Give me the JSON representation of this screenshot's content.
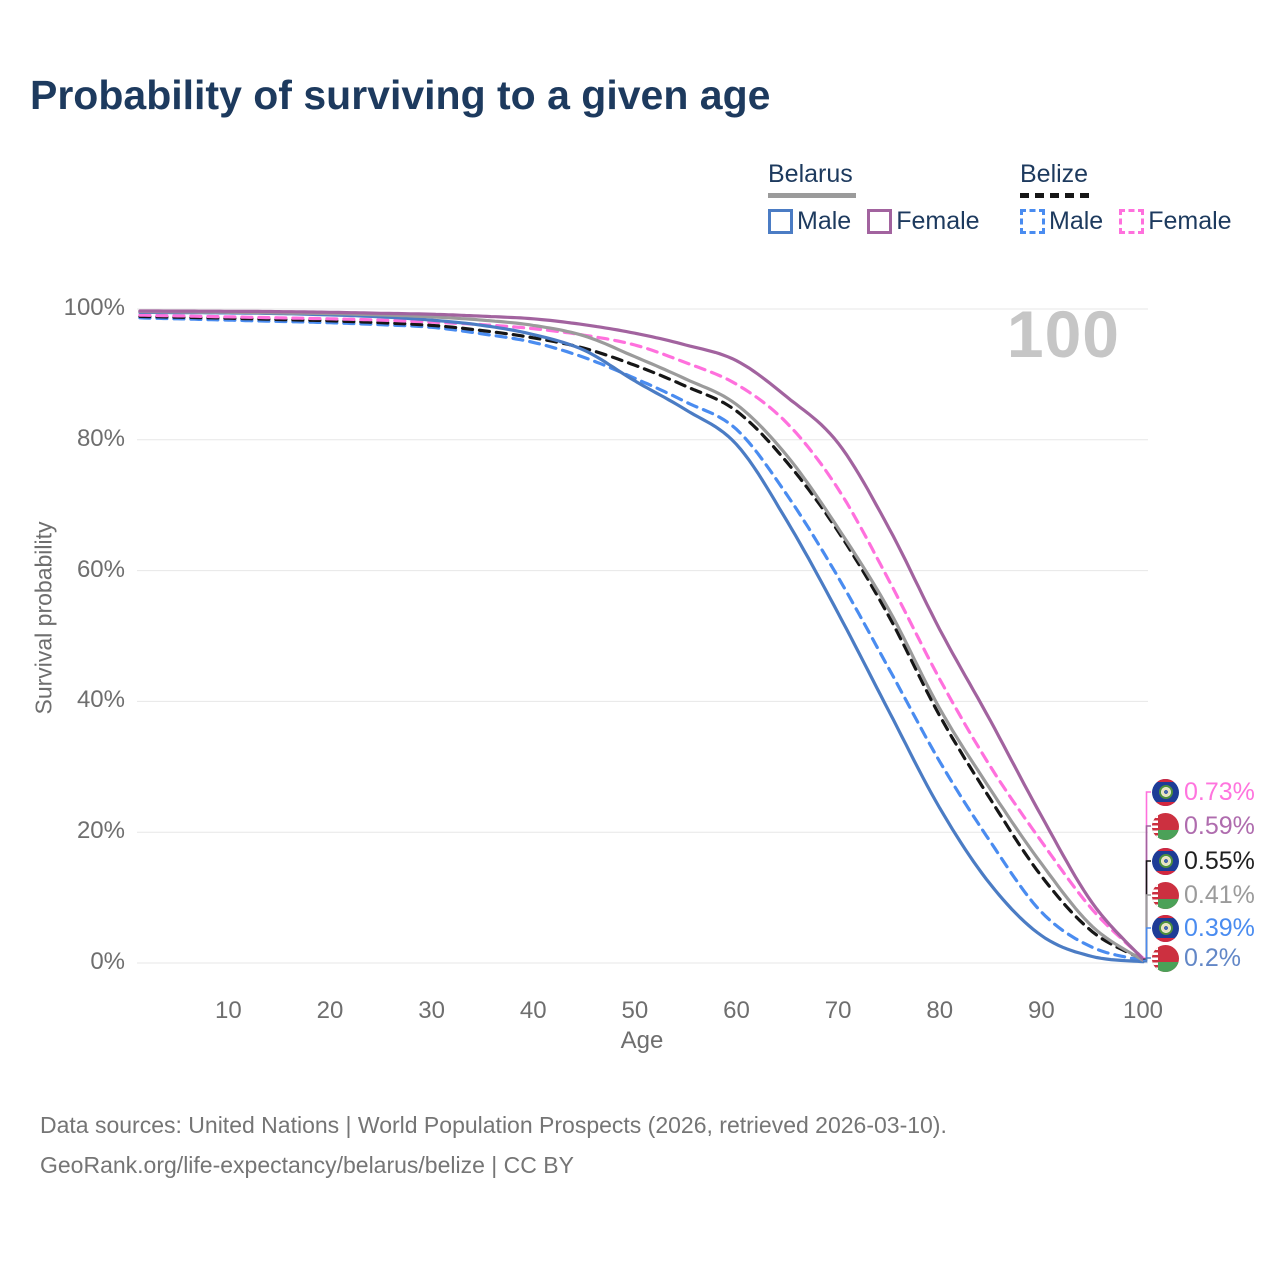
{
  "title": "Probability of surviving to a given age",
  "watermark": "100",
  "legend": {
    "groups": [
      {
        "name": "Belarus",
        "series_key": "belarus_all",
        "items": [
          {
            "label": "Male",
            "series_key": "belarus_male"
          },
          {
            "label": "Female",
            "series_key": "belarus_female"
          }
        ]
      },
      {
        "name": "Belize",
        "series_key": "belize_all",
        "items": [
          {
            "label": "Male",
            "series_key": "belize_male"
          },
          {
            "label": "Female",
            "series_key": "belize_female"
          }
        ]
      }
    ]
  },
  "axes": {
    "y": {
      "label": "Survival probability",
      "ticks": [
        "100%",
        "80%",
        "60%",
        "40%",
        "20%",
        "0%"
      ],
      "tick_values": [
        100,
        80,
        60,
        40,
        20,
        0
      ]
    },
    "x": {
      "label": "Age",
      "ticks": [
        "10",
        "20",
        "30",
        "40",
        "50",
        "60",
        "70",
        "80",
        "90",
        "100"
      ],
      "tick_values": [
        10,
        20,
        30,
        40,
        50,
        60,
        70,
        80,
        90,
        100
      ]
    }
  },
  "right_labels": [
    {
      "value": "0.73%",
      "color": "#ff74de",
      "flag": "belize",
      "series_key": "belize_female"
    },
    {
      "value": "0.59%",
      "color": "#af6cae",
      "flag": "belarus",
      "series_key": "belarus_female"
    },
    {
      "value": "0.55%",
      "color": "#1f1f1f",
      "flag": "belize",
      "series_key": "belize_all"
    },
    {
      "value": "0.41%",
      "color": "#9b9b9b",
      "flag": "belarus",
      "series_key": "belarus_all"
    },
    {
      "value": "0.39%",
      "color": "#4a8cf0",
      "flag": "belize",
      "series_key": "belize_male"
    },
    {
      "value": "0.2%",
      "color": "#6287c7",
      "flag": "belarus",
      "series_key": "belarus_male"
    }
  ],
  "footer": {
    "line1": "Data sources: United Nations | World Population Prospects (2026, retrieved 2026-03-10).",
    "line2": "GeoRank.org/life-expectancy/belarus/belize | CC BY"
  },
  "chart_data": {
    "type": "line",
    "title": "Probability of surviving to a given age",
    "xlabel": "Age",
    "ylabel": "Survival probability",
    "xlim": [
      0,
      100
    ],
    "ylim": [
      0,
      100
    ],
    "grid": "horizontal",
    "legend_position": "top-right",
    "frame_age_label": "100",
    "x": [
      0,
      5,
      10,
      15,
      20,
      25,
      30,
      35,
      40,
      45,
      50,
      55,
      60,
      65,
      70,
      75,
      80,
      85,
      90,
      95,
      100
    ],
    "series": [
      {
        "key": "belarus_male",
        "name": "Belarus Male",
        "country": "Belarus",
        "sex": "male",
        "style": "solid",
        "color": "#4b7cc4",
        "end_label": "0.2%",
        "values": [
          99.5,
          99.45,
          99.4,
          99.3,
          99.1,
          98.8,
          98.3,
          97.5,
          96.1,
          93.7,
          89.0,
          84.6,
          79.3,
          67.5,
          53.5,
          38.5,
          23.7,
          12.0,
          4.2,
          1.0,
          0.2
        ]
      },
      {
        "key": "belarus_female",
        "name": "Belarus Female",
        "country": "Belarus",
        "sex": "female",
        "style": "solid",
        "color": "#a2639f",
        "end_label": "0.59%",
        "values": [
          99.7,
          99.68,
          99.65,
          99.6,
          99.5,
          99.35,
          99.2,
          98.9,
          98.5,
          97.6,
          96.3,
          94.5,
          92.1,
          86.5,
          79.5,
          66.5,
          51.0,
          37.0,
          22.5,
          9.2,
          0.59
        ]
      },
      {
        "key": "belarus_all",
        "name": "Belarus Both sexes",
        "country": "Belarus",
        "sex": "all",
        "style": "solid",
        "color": "#9b9b9b",
        "end_label": "0.41%",
        "values": [
          99.6,
          99.55,
          99.5,
          99.4,
          99.3,
          99.1,
          98.8,
          98.3,
          97.5,
          95.9,
          92.7,
          89.3,
          85.4,
          77.5,
          66.5,
          54.0,
          38.9,
          26.5,
          15.2,
          5.6,
          0.41
        ]
      },
      {
        "key": "belize_male",
        "name": "Belize Male",
        "country": "Belize",
        "sex": "male",
        "style": "dashed",
        "color": "#4a8cf0",
        "end_label": "0.39%",
        "values": [
          98.7,
          98.5,
          98.3,
          98.1,
          97.9,
          97.6,
          97.2,
          96.2,
          94.9,
          92.6,
          89.4,
          85.8,
          81.6,
          71.5,
          59.0,
          45.0,
          30.8,
          18.5,
          7.8,
          2.4,
          0.39
        ]
      },
      {
        "key": "belize_female",
        "name": "Belize Female",
        "country": "Belize",
        "sex": "female",
        "style": "dashed",
        "color": "#ff70dd",
        "end_label": "0.73%",
        "values": [
          99.1,
          98.95,
          98.8,
          98.65,
          98.5,
          98.3,
          98.0,
          97.6,
          97.0,
          96.0,
          94.5,
          91.8,
          88.5,
          82.5,
          72.5,
          58.5,
          43.4,
          30.0,
          18.6,
          8.2,
          0.73
        ]
      },
      {
        "key": "belize_all",
        "name": "Belize Both sexes",
        "country": "Belize",
        "sex": "all",
        "style": "dashed",
        "color": "#161616",
        "end_label": "0.55%",
        "values": [
          98.9,
          98.75,
          98.6,
          98.4,
          98.2,
          97.9,
          97.5,
          96.7,
          95.6,
          94.0,
          91.4,
          88.2,
          84.4,
          76.5,
          66.0,
          53.0,
          37.8,
          25.0,
          13.3,
          4.8,
          0.55
        ]
      }
    ]
  }
}
